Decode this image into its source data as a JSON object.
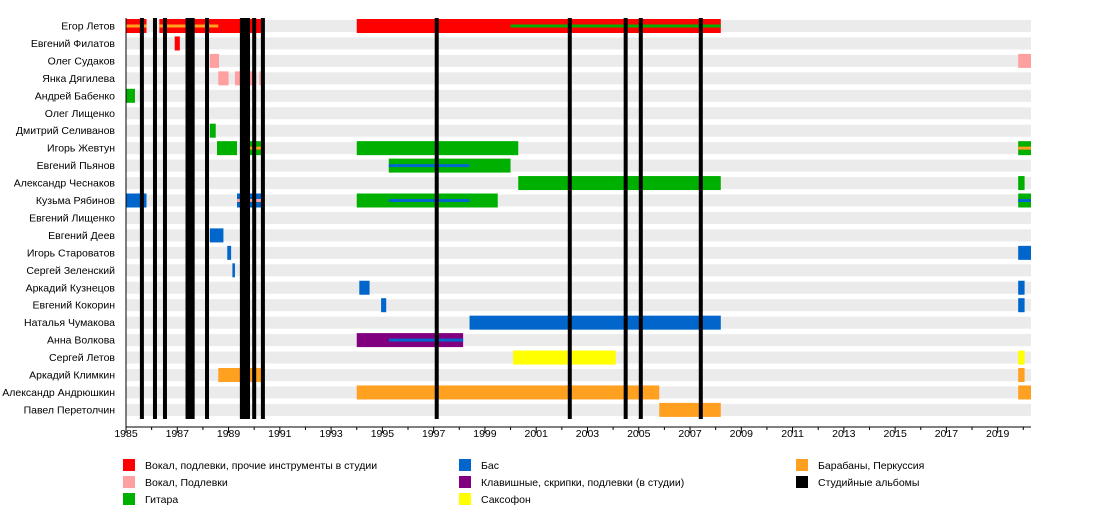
{
  "chart_data": {
    "type": "timeline",
    "xlim": [
      1985,
      2020.3
    ],
    "x_ticks": [
      1985,
      1987,
      1989,
      1991,
      1993,
      1995,
      1997,
      1999,
      2001,
      2003,
      2005,
      2007,
      2009,
      2011,
      2013,
      2015,
      2017,
      2019
    ],
    "colors": {
      "vocal": "#ff0000",
      "backvocal": "#ffa0a0",
      "guitar": "#00b000",
      "bass": "#0066cc",
      "keys": "#800080",
      "sax": "#ffff00",
      "drums": "#ffa020",
      "album": "#000000"
    },
    "legend": [
      {
        "role": "vocal",
        "label": "Вокал, подлевки, прочие инструменты в студии"
      },
      {
        "role": "backvocal",
        "label": "Вокал, Подлевки"
      },
      {
        "role": "guitar",
        "label": "Гитара"
      },
      {
        "role": "bass",
        "label": "Бас"
      },
      {
        "role": "keys",
        "label": "Клавишные, скрипки, подлевки (в студии)"
      },
      {
        "role": "sax",
        "label": "Саксофон"
      },
      {
        "role": "drums",
        "label": "Барабаны, Перкуссия"
      },
      {
        "role": "album",
        "label": "Студийные альбомы"
      }
    ],
    "albums": [
      1985.62,
      1986.13,
      1986.52,
      1987.4,
      1987.5,
      1987.6,
      1988.16,
      1989.52,
      1989.64,
      1989.76,
      1990.0,
      1990.34,
      1997.12,
      2002.31,
      2004.49,
      2005.08,
      2007.42
    ],
    "members": [
      {
        "name": "Егор Летов",
        "bars": [
          [
            1985,
            1985.8,
            "vocal"
          ],
          [
            1986.3,
            1990.4,
            "vocal"
          ],
          [
            1994,
            2008.2,
            "vocal"
          ]
        ],
        "overlays": [
          [
            1985,
            1985.8,
            "drums"
          ],
          [
            1986.3,
            1988.6,
            "drums"
          ],
          [
            2000,
            2008.2,
            "guitar"
          ]
        ]
      },
      {
        "name": "Евгений Филатов",
        "bars": [
          [
            1986.9,
            1987.1,
            "vocal"
          ]
        ],
        "overlays": []
      },
      {
        "name": "Олег Судаков",
        "bars": [
          [
            1988.27,
            1988.63,
            "backvocal"
          ],
          [
            2019.8,
            2020.3,
            "backvocal"
          ]
        ],
        "overlays": []
      },
      {
        "name": "Янка Дягилева",
        "bars": [
          [
            1988.6,
            1989.0,
            "backvocal"
          ],
          [
            1989.25,
            1989.95,
            "backvocal"
          ],
          [
            1990.2,
            1990.4,
            "backvocal"
          ]
        ],
        "overlays": []
      },
      {
        "name": "Андрей Бабенко",
        "bars": [
          [
            1985,
            1985.35,
            "guitar"
          ]
        ],
        "overlays": []
      },
      {
        "name": "Олег Лищенко",
        "bars": [
          [
            1987.35,
            1987.45,
            "guitar"
          ]
        ],
        "overlays": []
      },
      {
        "name": "Дмитрий Селиванов",
        "bars": [
          [
            1988.27,
            1988.5,
            "guitar"
          ]
        ],
        "overlays": []
      },
      {
        "name": "Игорь Жевтун",
        "bars": [
          [
            1988.55,
            1989.33,
            "guitar"
          ],
          [
            1989.5,
            1990.4,
            "guitar"
          ],
          [
            1994,
            2000.3,
            "guitar"
          ],
          [
            2019.8,
            2020.3,
            "guitar"
          ]
        ],
        "overlays": [
          [
            1989.5,
            1990.4,
            "drums"
          ],
          [
            2019.8,
            2020.3,
            "drums"
          ]
        ]
      },
      {
        "name": "Евгений Пьянов",
        "bars": [
          [
            1995.25,
            2000.0,
            "guitar"
          ]
        ],
        "overlays": [
          [
            1995.25,
            1998.4,
            "bass"
          ]
        ]
      },
      {
        "name": "Александр Чеснаков",
        "bars": [
          [
            2000.3,
            2008.2,
            "guitar"
          ],
          [
            2019.8,
            2020.05,
            "guitar"
          ]
        ],
        "overlays": []
      },
      {
        "name": "Кузьма Рябинов",
        "bars": [
          [
            1985,
            1985.8,
            "bass"
          ],
          [
            1989.33,
            1990.4,
            "bass"
          ],
          [
            1994,
            1999.5,
            "guitar"
          ],
          [
            2019.8,
            2020.3,
            "guitar"
          ]
        ],
        "overlays": [
          [
            1989.33,
            1990.4,
            "backvocal"
          ],
          [
            1995.25,
            1998.4,
            "bass"
          ],
          [
            2019.8,
            2020.3,
            "bass"
          ]
        ]
      },
      {
        "name": "Евгений Лищенко",
        "bars": [
          [
            1987.35,
            1987.45,
            "bass"
          ]
        ],
        "overlays": [
          [
            1987.35,
            1987.45,
            "backvocal"
          ]
        ]
      },
      {
        "name": "Евгений Деев",
        "bars": [
          [
            1988.27,
            1988.8,
            "bass"
          ]
        ],
        "overlays": []
      },
      {
        "name": "Игорь Староватов",
        "bars": [
          [
            1988.95,
            1989.1,
            "bass"
          ],
          [
            2019.8,
            2020.3,
            "bass"
          ]
        ],
        "overlays": []
      },
      {
        "name": "Сергей Зеленский",
        "bars": [
          [
            1989.15,
            1989.25,
            "bass"
          ]
        ],
        "overlays": []
      },
      {
        "name": "Аркадий Кузнецов",
        "bars": [
          [
            1994.1,
            1994.5,
            "bass"
          ],
          [
            2019.8,
            2020.05,
            "bass"
          ]
        ],
        "overlays": []
      },
      {
        "name": "Евгений Кокорин",
        "bars": [
          [
            1994.95,
            1995.15,
            "bass"
          ],
          [
            2019.8,
            2020.05,
            "bass"
          ]
        ],
        "overlays": []
      },
      {
        "name": "Наталья Чумакова",
        "bars": [
          [
            1998.4,
            2008.2,
            "bass"
          ]
        ],
        "overlays": []
      },
      {
        "name": "Анна Волкова",
        "bars": [
          [
            1994,
            1998.15,
            "keys"
          ]
        ],
        "overlays": [
          [
            1995.25,
            1998.15,
            "bass"
          ]
        ]
      },
      {
        "name": "Сергей Летов",
        "bars": [
          [
            2000.1,
            2004.1,
            "sax"
          ],
          [
            2019.8,
            2020.05,
            "sax"
          ]
        ],
        "overlays": []
      },
      {
        "name": "Аркадий Климкин",
        "bars": [
          [
            1988.6,
            1990.4,
            "drums"
          ],
          [
            2019.8,
            2020.05,
            "drums"
          ]
        ],
        "overlays": []
      },
      {
        "name": "Александр Андрюшкин",
        "bars": [
          [
            1994,
            2005.8,
            "drums"
          ],
          [
            2019.8,
            2020.3,
            "drums"
          ]
        ],
        "overlays": []
      },
      {
        "name": "Павел Перетолчин",
        "bars": [
          [
            2005.8,
            2008.2,
            "drums"
          ]
        ],
        "overlays": []
      }
    ]
  }
}
